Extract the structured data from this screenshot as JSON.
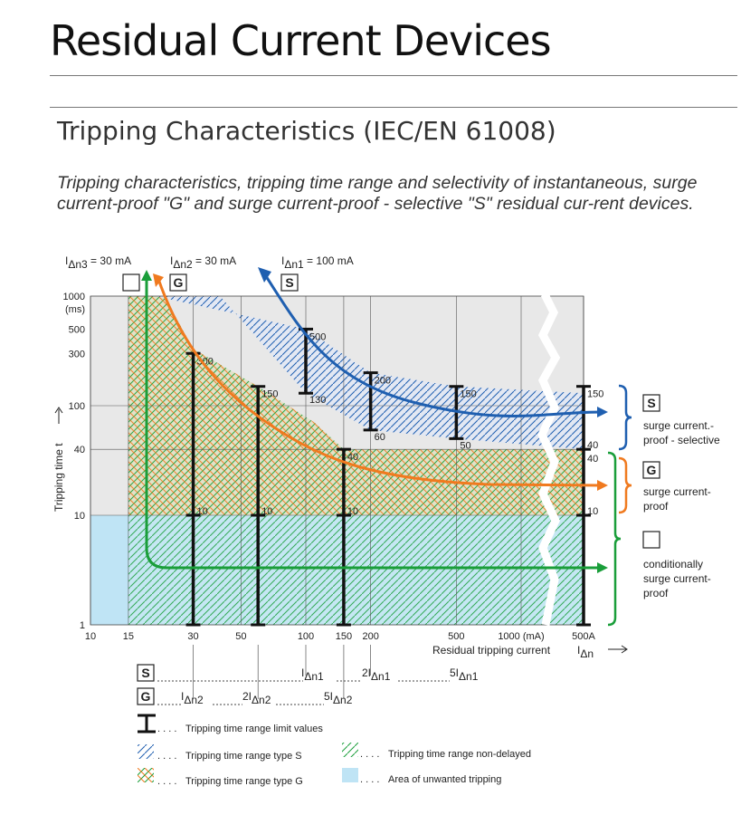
{
  "page": {
    "title": "Residual Current Devices",
    "subtitle": "Tripping Characteristics (IEC/EN 61008)",
    "description": "Tripping characteristics, tripping time range and selectivity of instantaneous, surge current-proof \"G\" and surge current-proof - selective \"S\" residual cur-rent devices."
  },
  "chart_data": {
    "type": "line",
    "xlabel": "Residual tripping current",
    "xlabel_symbol": "IΔn",
    "ylabel": "Tripping time t",
    "x_scale": "log",
    "y_scale": "log",
    "xlim_mA": [
      10,
      500000
    ],
    "ylim_ms": [
      1,
      1000
    ],
    "x_ticks": [
      {
        "value": 10,
        "label": "10"
      },
      {
        "value": 15,
        "label": "15"
      },
      {
        "value": 30,
        "label": "30"
      },
      {
        "value": 50,
        "label": "50"
      },
      {
        "value": 100,
        "label": "100"
      },
      {
        "value": 150,
        "label": "150"
      },
      {
        "value": 200,
        "label": "200"
      },
      {
        "value": 500,
        "label": "500"
      },
      {
        "value": 1000,
        "label": "1000 (mA)"
      },
      {
        "value": 500000,
        "label": "500A"
      }
    ],
    "y_ticks": [
      {
        "value": 1,
        "label": "1"
      },
      {
        "value": 10,
        "label": "10"
      },
      {
        "value": 40,
        "label": "40"
      },
      {
        "value": 100,
        "label": "100"
      },
      {
        "value": 300,
        "label": "300"
      },
      {
        "value": 500,
        "label": "500"
      },
      {
        "value": 1000,
        "label": "1000"
      }
    ],
    "y_unit_label": "(ms)",
    "top_labels": [
      {
        "text": "IΔn3 = 30 mA",
        "badge": ""
      },
      {
        "text": "IΔn2 = 30 mA",
        "badge": "G"
      },
      {
        "text": "IΔn1 = 100 mA",
        "badge": "S"
      }
    ],
    "limit_bars": [
      {
        "x": 30,
        "y_min": 1,
        "y_max": 300,
        "labels": [
          {
            "y": 300,
            "text": "300"
          },
          {
            "y": 10,
            "text": "10"
          }
        ]
      },
      {
        "x": 60,
        "y_min": 1,
        "y_max": 150,
        "labels": [
          {
            "y": 150,
            "text": "150"
          },
          {
            "y": 10,
            "text": "10"
          }
        ]
      },
      {
        "x": 150,
        "y_min": 1,
        "y_max": 40,
        "labels": [
          {
            "y": 40,
            "text": "40"
          },
          {
            "y": 10,
            "text": "10"
          }
        ]
      },
      {
        "x": 100,
        "y_min": 130,
        "y_max": 500,
        "labels": [
          {
            "y": 500,
            "text": "500"
          },
          {
            "y": 130,
            "text": "130"
          }
        ]
      },
      {
        "x": 200,
        "y_min": 60,
        "y_max": 200,
        "labels": [
          {
            "y": 200,
            "text": "200"
          },
          {
            "y": 60,
            "text": "60"
          }
        ]
      },
      {
        "x": 500,
        "y_min": 50,
        "y_max": 150,
        "labels": [
          {
            "y": 150,
            "text": "150"
          },
          {
            "y": 50,
            "text": "50"
          }
        ]
      },
      {
        "x": 500000,
        "y_min": 1,
        "y_max": 150,
        "labels": [
          {
            "y": 150,
            "text": "150"
          },
          {
            "y": 40,
            "text": "40"
          },
          {
            "y": 40,
            "text": "40",
            "below": true
          },
          {
            "y": 10,
            "text": "10"
          }
        ]
      }
    ],
    "series": [
      {
        "name": "S",
        "color": "#1f5fb0",
        "points": [
          [
            22,
            1000
          ],
          [
            100,
            260
          ],
          [
            200,
            120
          ],
          [
            500,
            80
          ],
          [
            500000,
            75
          ]
        ]
      },
      {
        "name": "G",
        "color": "#f07a1f",
        "points": [
          [
            17,
            1000
          ],
          [
            30,
            500
          ],
          [
            60,
            120
          ],
          [
            150,
            45
          ],
          [
            500,
            28
          ],
          [
            500000,
            25
          ]
        ]
      },
      {
        "name": "",
        "color": "#1a9e3a",
        "points": [
          [
            15,
            1000
          ],
          [
            15,
            3
          ],
          [
            500000,
            3
          ]
        ]
      }
    ],
    "right_legend": [
      {
        "badge": "S",
        "text": [
          "surge current.-",
          "proof - selective"
        ],
        "color": "#1f5fb0"
      },
      {
        "badge": "G",
        "text": [
          "surge current-",
          "proof"
        ],
        "color": "#f07a1f"
      },
      {
        "badge": "",
        "text": [
          "conditionally",
          "surge current-",
          "proof"
        ],
        "color": "#1a9e3a"
      }
    ],
    "bottom_scale": {
      "S": {
        "badge": "S",
        "labels": [
          "IΔn1",
          "2IΔn1",
          "5IΔn1"
        ]
      },
      "G": {
        "badge": "G",
        "labels": [
          "IΔn2",
          "2IΔn2",
          "5IΔn2"
        ]
      }
    },
    "key": [
      {
        "symbol": "limit",
        "text": "Tripping time range limit values"
      },
      {
        "symbol": "hatch-s",
        "text": "Tripping time range type S"
      },
      {
        "symbol": "hatch-nd",
        "text": "Tripping time range non-delayed"
      },
      {
        "symbol": "hatch-g",
        "text": "Tripping time range type G"
      },
      {
        "symbol": "unwanted",
        "text": "Area of unwanted tripping"
      }
    ],
    "colors": {
      "s": "#1f5fb0",
      "g": "#f07a1f",
      "nd": "#1a9e3a",
      "unwanted": "#bfe4f5",
      "plot_bg": "#e8e8e8"
    }
  }
}
